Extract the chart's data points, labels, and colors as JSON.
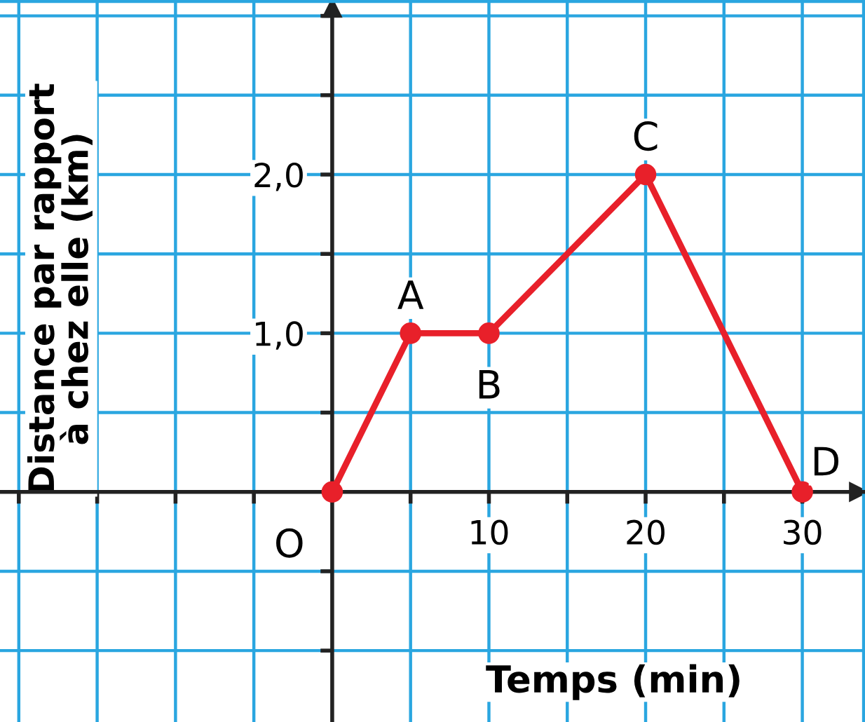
{
  "chart_data": {
    "type": "line",
    "xlabel": "Temps (min)",
    "ylabel": "Distance par rapport\nà chez elle (km)",
    "x": [
      0,
      5,
      10,
      20,
      30
    ],
    "series": [
      {
        "color": "#e8202a",
        "values": [
          0,
          1,
          1,
          2,
          0
        ]
      }
    ],
    "marker": "circle",
    "line_style": "solid",
    "grid": true,
    "xlim": [
      -21.2,
      34
    ],
    "ylim": [
      -1.45,
      3.1
    ],
    "xticks": [
      {
        "value": -20,
        "label": null
      },
      {
        "value": -15,
        "label": null
      },
      {
        "value": -10,
        "label": null
      },
      {
        "value": -5,
        "label": null
      },
      {
        "value": 5,
        "label": null
      },
      10,
      {
        "value": 15,
        "label": null
      },
      20,
      {
        "value": 25,
        "label": null
      },
      30
    ],
    "yticks": [
      {
        "value": -1,
        "label": null
      },
      {
        "value": -0.5,
        "label": null
      },
      {
        "value": 0.5,
        "label": null
      },
      {
        "value": 1,
        "label": "1,0"
      },
      {
        "value": 1.5,
        "label": null
      },
      {
        "value": 2,
        "label": "2,0"
      },
      {
        "value": 2.5,
        "label": null
      },
      {
        "value": 3,
        "label": null
      }
    ],
    "annotations": [
      {
        "text": "O",
        "x": 0,
        "y": 0
      },
      {
        "text": "A",
        "x": 5,
        "y": 1
      },
      {
        "text": "B",
        "x": 10,
        "y": 1
      },
      {
        "text": "C",
        "x": 20,
        "y": 2
      },
      {
        "text": "D",
        "x": 30,
        "y": 0
      }
    ]
  }
}
